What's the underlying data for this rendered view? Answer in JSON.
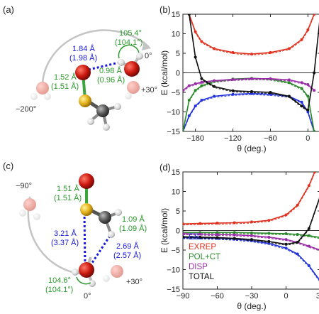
{
  "panels": {
    "a": {
      "label": "(a)",
      "distances": [
        {
          "main": "1.84 Å",
          "sub": "(1.98 Å)",
          "color": "#1a1adf"
        },
        {
          "main": "1.52 Å",
          "sub": "(1.51 Å)",
          "color": "#2a9a2a"
        },
        {
          "main": "0.98 Å",
          "sub": "(0.96 Å)",
          "color": "#2a9a2a"
        }
      ],
      "angle": {
        "main": "105.4°",
        "sub": "(104.1°)",
        "color": "#2a9a2a"
      },
      "rotation_labels": [
        "0°",
        "+30°",
        "−200°"
      ]
    },
    "c": {
      "label": "(c)",
      "distances": [
        {
          "main": "1.51 Å",
          "sub": "(1.51 Å)",
          "color": "#2a9a2a"
        },
        {
          "main": "1.09 Å",
          "sub": "(1.09 Å)",
          "color": "#2a9a2a"
        },
        {
          "main": "3.21 Å",
          "sub": "(3.37 Å)",
          "color": "#1a1adf"
        },
        {
          "main": "2.69 Å",
          "sub": "(2.57 Å)",
          "color": "#1a1adf"
        }
      ],
      "angle": {
        "main": "104.6°",
        "sub": "(104.1°)",
        "color": "#2a9a2a"
      },
      "rotation_labels": [
        "−90°",
        "0°",
        "+30°"
      ]
    },
    "b": {
      "label": "(b)"
    },
    "d": {
      "label": "(d)"
    }
  },
  "colors": {
    "ES": "#2233dd",
    "EXREP": "#e0301e",
    "POL+CT": "#2a8a2a",
    "DISP": "#9a2aa8",
    "TOTAL": "#111111"
  },
  "chart_data": [
    {
      "type": "line",
      "panel": "b",
      "xlabel": "θ (deg.)",
      "ylabel": "E (kcal/mol)",
      "xlim": [
        -200,
        20
      ],
      "ylim": [
        -15,
        15
      ],
      "xticks": [
        -180,
        -120,
        -60,
        0
      ],
      "yticks": [
        -15,
        -10,
        -5,
        0,
        5,
        10,
        15
      ],
      "series": [
        {
          "key": "EXREP",
          "x": [
            -190,
            -180,
            -170,
            -150,
            -120,
            -90,
            -60,
            -30,
            -10,
            0,
            10
          ],
          "y": [
            15,
            10.5,
            8,
            6.2,
            5.2,
            4.8,
            5.2,
            6.2,
            8.5,
            11,
            15
          ]
        },
        {
          "key": "ES",
          "x": [
            -200,
            -190,
            -180,
            -170,
            -150,
            -120,
            -90,
            -60,
            -30,
            -10,
            0,
            10
          ],
          "y": [
            -15,
            -11,
            -8.5,
            -7,
            -6,
            -5.5,
            -5.3,
            -5.5,
            -6,
            -7.5,
            -10,
            -15
          ]
        },
        {
          "key": "POL+CT",
          "x": [
            -200,
            -190,
            -180,
            -170,
            -150,
            -120,
            -90,
            -60,
            -30,
            -10,
            0,
            10
          ],
          "y": [
            -15,
            -7,
            -4.5,
            -3.3,
            -2.2,
            -1.6,
            -1.4,
            -1.6,
            -2.5,
            -4,
            -6,
            -15
          ]
        },
        {
          "key": "DISP",
          "x": [
            -200,
            -190,
            -180,
            -170,
            -150,
            -120,
            -90,
            -60,
            -30,
            -10,
            0,
            10
          ],
          "y": [
            -4.5,
            -3.3,
            -2.8,
            -2.4,
            -2,
            -1.7,
            -1.5,
            -1.5,
            -1.8,
            -2.5,
            -3,
            -4.5
          ]
        },
        {
          "key": "TOTAL",
          "x": [
            -190,
            -180,
            -170,
            -150,
            -120,
            -90,
            -60,
            -30,
            -10,
            0,
            10,
            20
          ],
          "y": [
            15,
            4,
            -1.5,
            -3.5,
            -4.6,
            -4.8,
            -5,
            -6,
            -8.5,
            -9.5,
            0,
            15
          ]
        }
      ]
    },
    {
      "type": "line",
      "panel": "d",
      "xlabel": "θ (deg.)",
      "ylabel": "E (kcal/mol)",
      "xlim": [
        -90,
        30
      ],
      "ylim": [
        -15,
        15
      ],
      "xticks": [
        -90,
        -60,
        -30,
        0,
        30
      ],
      "yticks": [
        -15,
        -10,
        -5,
        0,
        5,
        10,
        15
      ],
      "legend": [
        "ES",
        "EXREP",
        "POL+CT",
        "DISP",
        "TOTAL"
      ],
      "series": [
        {
          "key": "EXREP",
          "x": [
            -90,
            -75,
            -60,
            -45,
            -30,
            -15,
            0,
            10,
            20,
            25
          ],
          "y": [
            1.7,
            1.8,
            1.9,
            2,
            2.2,
            2.6,
            4,
            6.5,
            11.5,
            15
          ]
        },
        {
          "key": "ES",
          "x": [
            -90,
            -75,
            -60,
            -45,
            -30,
            -15,
            0,
            10,
            20,
            30
          ],
          "y": [
            -1.8,
            -1.9,
            -2,
            -2.2,
            -2.6,
            -3.3,
            -4.5,
            -6,
            -9,
            -13
          ]
        },
        {
          "key": "POL+CT",
          "x": [
            -90,
            -75,
            -60,
            -45,
            -30,
            -15,
            0,
            10,
            20,
            30
          ],
          "y": [
            -0.5,
            -0.5,
            -0.5,
            -0.5,
            -0.6,
            -0.7,
            -0.8,
            -1,
            -1.3,
            -1.8
          ]
        },
        {
          "key": "DISP",
          "x": [
            -90,
            -75,
            -60,
            -45,
            -30,
            -15,
            0,
            10,
            20,
            30
          ],
          "y": [
            -0.8,
            -0.9,
            -1,
            -1.1,
            -1.3,
            -1.7,
            -2.3,
            -3,
            -4,
            -5
          ]
        },
        {
          "key": "TOTAL",
          "x": [
            -90,
            -75,
            -60,
            -45,
            -30,
            -15,
            0,
            10,
            20,
            30
          ],
          "y": [
            -1.6,
            -1.7,
            -1.8,
            -2,
            -2.3,
            -2.8,
            -3.5,
            -3,
            0.5,
            9
          ]
        }
      ]
    }
  ]
}
